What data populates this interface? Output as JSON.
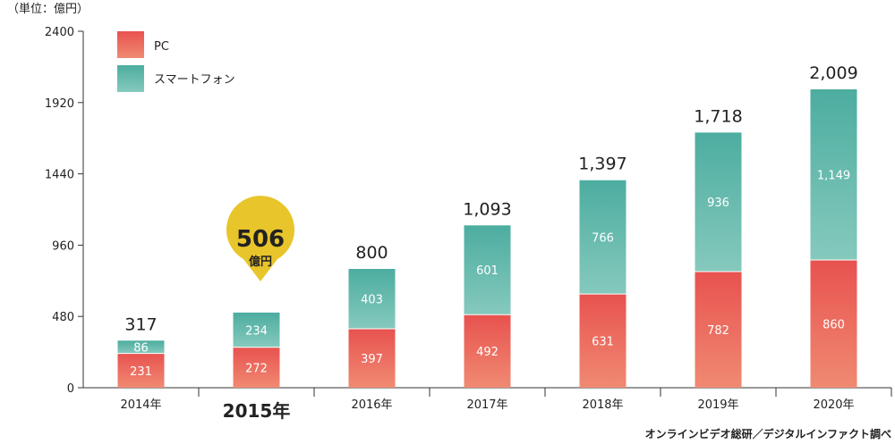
{
  "chart_data": {
    "type": "bar",
    "stacked": true,
    "unit_label": "（単位：億円）",
    "categories": [
      "2014年",
      "2015年",
      "2016年",
      "2017年",
      "2018年",
      "2019年",
      "2020年"
    ],
    "series": [
      {
        "name": "PC",
        "values": [
          231,
          272,
          397,
          492,
          631,
          782,
          860
        ],
        "color_top": "#e8524f",
        "color_bottom": "#f08a72"
      },
      {
        "name": "スマートフォン",
        "values": [
          86,
          234,
          403,
          601,
          766,
          936,
          1149
        ],
        "color_top": "#4cada0",
        "color_bottom": "#86c9bd"
      }
    ],
    "totals": [
      "317",
      "506",
      "800",
      "1,093",
      "1,397",
      "1,718",
      "2,009"
    ],
    "segment_labels": {
      "PC": [
        "231",
        "272",
        "397",
        "492",
        "631",
        "782",
        "860"
      ],
      "スマートフォン": [
        "86",
        "234",
        "403",
        "601",
        "766",
        "936",
        "1,149"
      ]
    },
    "y_ticks": [
      "0",
      "480",
      "960",
      "1440",
      "1920",
      "2400"
    ],
    "ylim": [
      0,
      2400
    ],
    "legend_position": "top-left",
    "highlight": {
      "category": "2015年",
      "value": "506",
      "unit": "億円",
      "bubble_color": "#e8c52a"
    },
    "source": "オンラインビデオ総研／デジタルインファクト調べ"
  }
}
